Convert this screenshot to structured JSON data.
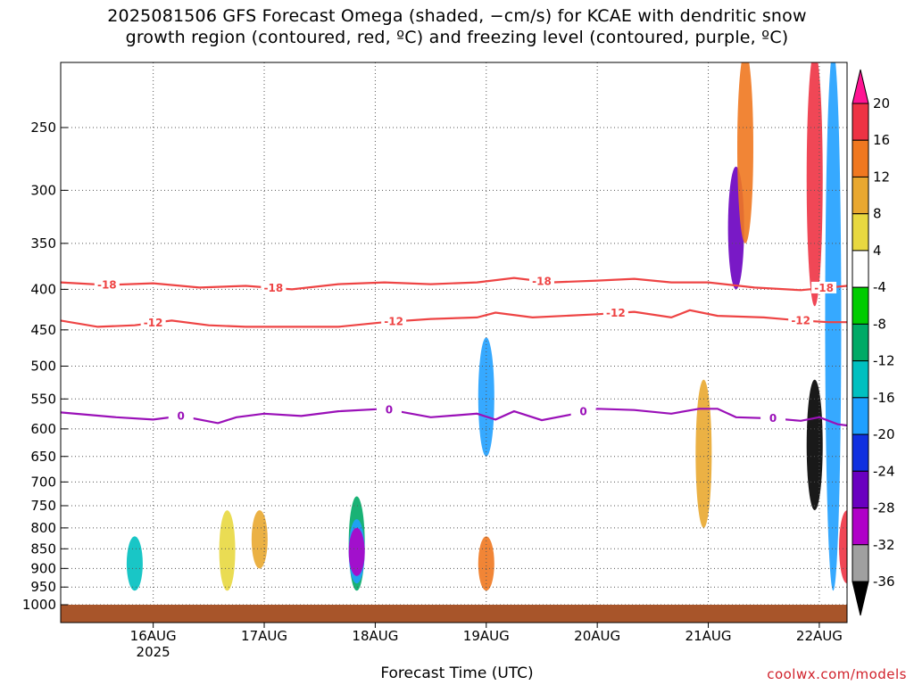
{
  "title_line1": "2025081506 GFS Forecast Omega (shaded, −cm/s) for KCAE with dendritic snow",
  "title_line2": "growth region (contoured, red, ºC) and freezing level (contoured, purple, ºC)",
  "xlabel": "Forecast Time (UTC)",
  "credit": "coolwx.com/models",
  "colors": {
    "dgz": "#ee4444",
    "freezing": "#9a10b8",
    "ground": "#a8552a"
  },
  "chart_data": {
    "type": "heatmap",
    "title": "2025081506 GFS Forecast Omega (shaded, −cm/s) for KCAE with dendritic snow growth region (contoured, red, ºC) and freezing level (contoured, purple, ºC)",
    "xlabel": "Forecast Time (UTC)",
    "ylabel": "",
    "x_range_hours_from_16AUG00": [
      -20,
      150
    ],
    "x_ticks": [
      {
        "label": "16AUG",
        "sub": "2025",
        "hour": 0
      },
      {
        "label": "17AUG",
        "sub": "",
        "hour": 24
      },
      {
        "label": "18AUG",
        "sub": "",
        "hour": 48
      },
      {
        "label": "19AUG",
        "sub": "",
        "hour": 72
      },
      {
        "label": "20AUG",
        "sub": "",
        "hour": 96
      },
      {
        "label": "21AUG",
        "sub": "",
        "hour": 120
      },
      {
        "label": "22AUG",
        "sub": "",
        "hour": 144
      }
    ],
    "y_range_hPa": [
      1000,
      200
    ],
    "y_ticks": [
      "250",
      "300",
      "350",
      "400",
      "450",
      "500",
      "550",
      "600",
      "650",
      "700",
      "750",
      "800",
      "850",
      "900",
      "950",
      "1000"
    ],
    "y_ticks_values": [
      250,
      300,
      350,
      400,
      450,
      500,
      550,
      600,
      650,
      700,
      750,
      800,
      850,
      900,
      950,
      1000
    ],
    "colorbar": {
      "labels": [
        "20",
        "16",
        "12",
        "8",
        "4",
        "-4",
        "-8",
        "-12",
        "-16",
        "-20",
        "-24",
        "-28",
        "-32",
        "-36"
      ],
      "bins": [
        {
          "color": "#ff1493"
        },
        {
          "color": "#ee3344"
        },
        {
          "color": "#f07820"
        },
        {
          "color": "#e9a830"
        },
        {
          "color": "#e8d840"
        },
        {
          "color": "#ffffff"
        },
        {
          "color": "#00cc00"
        },
        {
          "color": "#00aa66"
        },
        {
          "color": "#00c0c0"
        },
        {
          "color": "#20a0ff"
        },
        {
          "color": "#1030e0"
        },
        {
          "color": "#6a00c0"
        },
        {
          "color": "#b000c8"
        },
        {
          "color": "#a0a0a0"
        },
        {
          "color": "#000000"
        }
      ]
    },
    "contours": [
      {
        "name": "-18",
        "color": "#ee4444",
        "label_hours": [
          -10,
          26,
          84,
          145
        ],
        "points": [
          [
            -20,
            392
          ],
          [
            -10,
            395
          ],
          [
            0,
            393
          ],
          [
            10,
            398
          ],
          [
            20,
            396
          ],
          [
            30,
            400
          ],
          [
            40,
            394
          ],
          [
            50,
            392
          ],
          [
            60,
            394
          ],
          [
            70,
            392
          ],
          [
            78,
            387
          ],
          [
            86,
            392
          ],
          [
            96,
            390
          ],
          [
            104,
            388
          ],
          [
            112,
            392
          ],
          [
            120,
            392
          ],
          [
            130,
            398
          ],
          [
            140,
            401
          ],
          [
            146,
            398
          ],
          [
            150,
            396
          ]
        ]
      },
      {
        "name": "-12",
        "color": "#ee4444",
        "label_hours": [
          0,
          52,
          100,
          140
        ],
        "points": [
          [
            -20,
            438
          ],
          [
            -12,
            446
          ],
          [
            -4,
            444
          ],
          [
            4,
            438
          ],
          [
            12,
            444
          ],
          [
            20,
            446
          ],
          [
            30,
            446
          ],
          [
            40,
            446
          ],
          [
            50,
            440
          ],
          [
            60,
            436
          ],
          [
            70,
            434
          ],
          [
            74,
            428
          ],
          [
            82,
            434
          ],
          [
            96,
            430
          ],
          [
            104,
            427
          ],
          [
            112,
            434
          ],
          [
            116,
            425
          ],
          [
            122,
            432
          ],
          [
            132,
            434
          ],
          [
            140,
            438
          ],
          [
            146,
            440
          ],
          [
            150,
            440
          ]
        ]
      },
      {
        "name": "0",
        "color": "#9a10b8",
        "label_hours": [
          6,
          51,
          93,
          134
        ],
        "points": [
          [
            -20,
            572
          ],
          [
            -8,
            580
          ],
          [
            0,
            584
          ],
          [
            6,
            578
          ],
          [
            14,
            590
          ],
          [
            18,
            580
          ],
          [
            24,
            574
          ],
          [
            32,
            578
          ],
          [
            40,
            570
          ],
          [
            50,
            566
          ],
          [
            60,
            580
          ],
          [
            70,
            574
          ],
          [
            74,
            584
          ],
          [
            78,
            570
          ],
          [
            84,
            585
          ],
          [
            90,
            576
          ],
          [
            96,
            566
          ],
          [
            104,
            568
          ],
          [
            112,
            574
          ],
          [
            118,
            566
          ],
          [
            122,
            566
          ],
          [
            126,
            580
          ],
          [
            134,
            582
          ],
          [
            140,
            586
          ],
          [
            144,
            580
          ],
          [
            148,
            592
          ],
          [
            150,
            594
          ]
        ]
      }
    ],
    "shaded_regions": [
      {
        "hour": -4,
        "p_top": 820,
        "p_bottom": 960,
        "value": "-12"
      },
      {
        "hour": 16,
        "p_top": 760,
        "p_bottom": 960,
        "value": "8"
      },
      {
        "hour": 23,
        "p_top": 760,
        "p_bottom": 900,
        "value": "12"
      },
      {
        "hour": 44,
        "p_top": 730,
        "p_bottom": 960,
        "value": "-8"
      },
      {
        "hour": 44,
        "p_top": 780,
        "p_bottom": 940,
        "value": "-16"
      },
      {
        "hour": 44,
        "p_top": 800,
        "p_bottom": 920,
        "value": "-28"
      },
      {
        "hour": 72,
        "p_top": 820,
        "p_bottom": 960,
        "value": "16"
      },
      {
        "hour": 72,
        "p_top": 460,
        "p_bottom": 650,
        "value": "-16"
      },
      {
        "hour": 119,
        "p_top": 520,
        "p_bottom": 800,
        "value": "12"
      },
      {
        "hour": 126,
        "p_top": 280,
        "p_bottom": 400,
        "value": "-24"
      },
      {
        "hour": 128,
        "p_top": 200,
        "p_bottom": 350,
        "value": "16"
      },
      {
        "hour": 143,
        "p_top": 200,
        "p_bottom": 420,
        "value": "20"
      },
      {
        "hour": 143,
        "p_top": 520,
        "p_bottom": 760,
        "value": "-36"
      },
      {
        "hour": 147,
        "p_top": 200,
        "p_bottom": 960,
        "value": "-16"
      },
      {
        "hour": 150,
        "p_top": 760,
        "p_bottom": 940,
        "value": "20"
      }
    ]
  }
}
